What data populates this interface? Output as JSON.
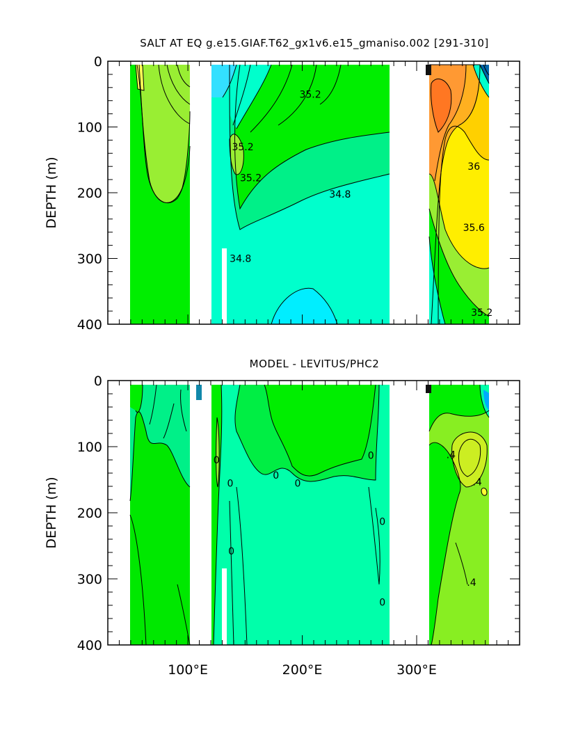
{
  "chart_data": [
    {
      "type": "heatmap",
      "title": "SALT AT EQ g.e15.GIAF.T62_gx1v6.e15_gmaniso.002 [291-310]",
      "ylabel": "DEPTH (m)",
      "xlim": [
        30,
        390
      ],
      "ylim": [
        400,
        0
      ],
      "yticks": [
        "0",
        "100",
        "200",
        "300",
        "400"
      ],
      "contour_labels": [
        {
          "text": "35.2",
          "x": 207,
          "y": 50
        },
        {
          "text": "35.2",
          "x": 148,
          "y": 130
        },
        {
          "text": "35.2",
          "x": 155,
          "y": 177
        },
        {
          "text": "34.8",
          "x": 233,
          "y": 202
        },
        {
          "text": "34.8",
          "x": 146,
          "y": 300
        },
        {
          "text": "36",
          "x": 350,
          "y": 160
        },
        {
          "text": "35.6",
          "x": 350,
          "y": 253
        },
        {
          "text": "35.2",
          "x": 357,
          "y": 382
        }
      ],
      "regions": [
        {
          "x0": 42,
          "x1": 98,
          "d0": 5,
          "d1": 400,
          "value": "35.0",
          "color": "#00ee00"
        },
        {
          "x0": 118,
          "x1": 278,
          "d0": 5,
          "d1": 400,
          "value": "34.8",
          "color": "#00ffcc"
        },
        {
          "x0": 315,
          "x1": 368,
          "d0": 5,
          "d1": 400,
          "value": "35.6",
          "color": "#ffff00"
        }
      ]
    },
    {
      "type": "heatmap",
      "title": "MODEL - LEVITUS/PHC2",
      "ylabel": "DEPTH (m)",
      "xlabel": "",
      "xlim": [
        30,
        390
      ],
      "ylim": [
        400,
        0
      ],
      "xticks": [
        "100°E",
        "200°E",
        "300°E"
      ],
      "yticks": [
        "0",
        "100",
        "200",
        "300",
        "400"
      ],
      "contour_labels": [
        {
          "text": "0",
          "x": 125,
          "y": 120
        },
        {
          "text": "0",
          "x": 137,
          "y": 155
        },
        {
          "text": "0",
          "x": 177,
          "y": 143
        },
        {
          "text": "0",
          "x": 196,
          "y": 155
        },
        {
          "text": "0",
          "x": 260,
          "y": 113
        },
        {
          "text": "0",
          "x": 270,
          "y": 213
        },
        {
          "text": "0",
          "x": 270,
          "y": 335
        },
        {
          "text": "0",
          "x": 138,
          "y": 258
        },
        {
          "text": ".4",
          "x": 330,
          "y": 112
        },
        {
          "text": ".4",
          "x": 353,
          "y": 153
        },
        {
          "text": ".4",
          "x": 348,
          "y": 305
        }
      ],
      "regions": [
        {
          "x0": 42,
          "x1": 98,
          "d0": 5,
          "d1": 400,
          "value": "0",
          "color": "#00ee00"
        },
        {
          "x0": 118,
          "x1": 278,
          "d0": 5,
          "d1": 400,
          "value": "0",
          "color": "#00ffaa"
        },
        {
          "x0": 315,
          "x1": 368,
          "d0": 5,
          "d1": 400,
          "value": "0.4",
          "color": "#88ee22"
        }
      ]
    }
  ]
}
